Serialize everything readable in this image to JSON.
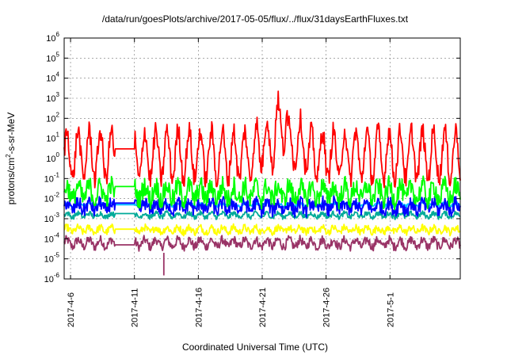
{
  "chart_data": {
    "type": "line",
    "title": "/data/run/goesPlots/archive/2017-05-05/flux/../flux/31daysEarthFluxes.txt",
    "xlabel": "Coordinated Universal Time (UTC)",
    "ylabel_base": "protons/cm",
    "ylabel_sup": "2",
    "ylabel_rest": "-s-sr-MeV",
    "yscale": "log",
    "ylim": [
      1e-06,
      1000000.0
    ],
    "y_ticks": [
      {
        "exp": "-6",
        "value": 1e-06
      },
      {
        "exp": "-5",
        "value": 1e-05
      },
      {
        "exp": "-4",
        "value": 0.0001
      },
      {
        "exp": "-3",
        "value": 0.001
      },
      {
        "exp": "-2",
        "value": 0.01
      },
      {
        "exp": "-1",
        "value": 0.1
      },
      {
        "exp": "0",
        "value": 1
      },
      {
        "exp": "1",
        "value": 10
      },
      {
        "exp": "2",
        "value": 100
      },
      {
        "exp": "3",
        "value": 1000
      },
      {
        "exp": "4",
        "value": 10000
      },
      {
        "exp": "5",
        "value": 100000
      },
      {
        "exp": "6",
        "value": 1000000
      }
    ],
    "xlim_days": [
      0,
      31
    ],
    "x_ticks": [
      {
        "label": "2017-4-6",
        "day": 0.5
      },
      {
        "label": "2017-4-11",
        "day": 5.5
      },
      {
        "label": "2017-4-16",
        "day": 10.5
      },
      {
        "label": "2017-4-21",
        "day": 15.5
      },
      {
        "label": "2017-4-26",
        "day": 20.5
      },
      {
        "label": "2017-5-1",
        "day": 25.5
      }
    ],
    "data_gap_days": [
      4.0,
      5.5
    ],
    "series": [
      {
        "name": "red",
        "color": "#ff0000",
        "base": 1.5,
        "base_late": 6,
        "amp": 1.2,
        "noise": 0.5,
        "gap_value": 3
      },
      {
        "name": "green",
        "color": "#00ff00",
        "base": 0.02,
        "amp": 0.35,
        "noise": 0.5,
        "gap_value": 0.04
      },
      {
        "name": "blue",
        "color": "#0000ff",
        "base": 0.004,
        "amp": 0.2,
        "noise": 0.35,
        "gap_value": 0.006
      },
      {
        "name": "cyan",
        "color": "#00c0ff",
        "base": 0.005,
        "amp": 0.08,
        "noise": 0.08,
        "gap_value": 0.005
      },
      {
        "name": "teal",
        "color": "#00aa99",
        "base": 0.0015,
        "amp": 0.1,
        "noise": 0.12,
        "gap_value": 0.0018
      },
      {
        "name": "yellow",
        "color": "#ffff00",
        "base": 0.00028,
        "amp": 0.12,
        "noise": 0.18,
        "gap_value": 0.0003
      },
      {
        "name": "purple",
        "color": "#993366",
        "base": 6e-05,
        "amp": 0.18,
        "noise": 0.22,
        "gap_value": 5e-05
      }
    ]
  }
}
